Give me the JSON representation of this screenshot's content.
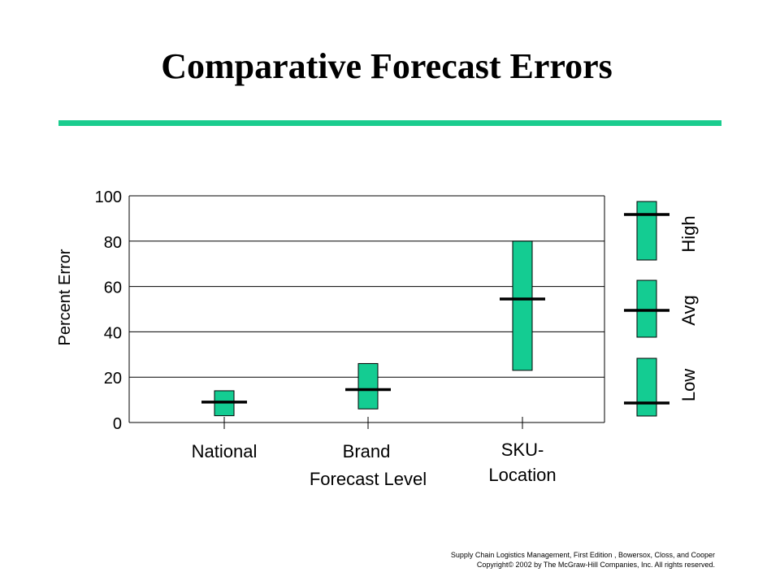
{
  "slide": {
    "title": "Comparative Forecast Errors",
    "footer_line1": "Supply Chain Logistics Management, First Edition , Bowersox, Closs, and Cooper",
    "footer_line2": "Copyright© 2002 by The McGraw-Hill Companies, Inc. All rights reserved."
  },
  "colors": {
    "accent_rule": "#1ACC8E",
    "box_fill": "#14CC92",
    "mark": "#000000"
  },
  "chart_data": {
    "type": "bar",
    "title": "",
    "ylabel": "Percent Error",
    "xlabel": "Forecast Level",
    "ylim": [
      0,
      100
    ],
    "yticks": [
      0,
      20,
      40,
      60,
      80,
      100
    ],
    "grid": "horizontal",
    "categories": [
      {
        "label_lines": [
          "National"
        ],
        "low": 3,
        "high": 14,
        "avg": 9
      },
      {
        "label_lines": [
          "Brand"
        ],
        "low": 6,
        "high": 26,
        "avg": 14.5
      },
      {
        "label_lines": [
          "SKU-",
          "Location"
        ],
        "low": 23,
        "high": 80,
        "avg": 54.5
      }
    ],
    "legend": {
      "position": "right",
      "entries": [
        {
          "label": "High",
          "marker": "top"
        },
        {
          "label": "Avg",
          "marker": "middle"
        },
        {
          "label": "Low",
          "marker": "bottom"
        }
      ]
    }
  }
}
